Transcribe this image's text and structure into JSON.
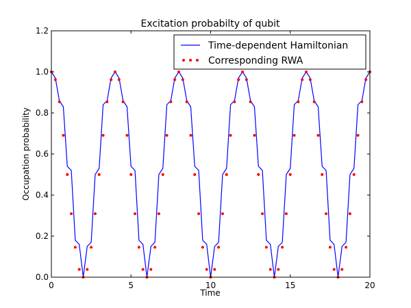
{
  "chart_data": {
    "type": "line",
    "title": "Excitation probabilty of qubit",
    "xlabel": "Time",
    "ylabel": "Occupation probability",
    "xlim": [
      0,
      20
    ],
    "ylim": [
      0,
      1.2
    ],
    "x_ticks": [
      "0",
      "5",
      "10",
      "15",
      "20"
    ],
    "y_ticks": [
      "0.0",
      "0.2",
      "0.4",
      "0.6",
      "0.8",
      "1.0",
      "1.2"
    ],
    "grid": false,
    "legend_position": "top-right",
    "series": [
      {
        "name": "Time-dependent Hamiltonian",
        "style": "solid-line",
        "color": "#0000ff",
        "x": [
          0.0,
          0.25,
          0.5,
          0.75,
          1.0,
          1.25,
          1.5,
          1.75,
          2.0,
          2.25,
          2.5,
          2.75,
          3.0,
          3.25,
          3.5,
          3.75,
          4.0,
          4.25,
          4.5,
          4.75,
          5.0,
          5.25,
          5.5,
          5.75,
          6.0,
          6.25,
          6.5,
          6.75,
          7.0,
          7.25,
          7.5,
          7.75,
          8.0,
          8.25,
          8.5,
          8.75,
          9.0,
          9.25,
          9.5,
          9.75,
          10.0,
          10.25,
          10.5,
          10.75,
          11.0,
          11.25,
          11.5,
          11.75,
          12.0,
          12.25,
          12.5,
          12.75,
          13.0,
          13.25,
          13.5,
          13.75,
          14.0,
          14.25,
          14.5,
          14.75,
          15.0,
          15.25,
          15.5,
          15.75,
          16.0,
          16.25,
          16.5,
          16.75,
          17.0,
          17.25,
          17.5,
          17.75,
          18.0,
          18.25,
          18.5,
          18.75,
          19.0,
          19.25,
          19.5,
          19.75,
          20.0
        ],
        "y": [
          1.0,
          0.97,
          0.86,
          0.83,
          0.54,
          0.52,
          0.18,
          0.16,
          0.0,
          0.15,
          0.17,
          0.5,
          0.53,
          0.84,
          0.86,
          0.97,
          1.0,
          0.97,
          0.86,
          0.83,
          0.54,
          0.52,
          0.18,
          0.16,
          0.0,
          0.15,
          0.17,
          0.5,
          0.53,
          0.84,
          0.86,
          0.97,
          1.0,
          0.97,
          0.86,
          0.83,
          0.54,
          0.52,
          0.18,
          0.16,
          0.0,
          0.15,
          0.17,
          0.5,
          0.53,
          0.84,
          0.86,
          0.97,
          1.0,
          0.97,
          0.86,
          0.83,
          0.54,
          0.52,
          0.18,
          0.16,
          0.0,
          0.15,
          0.17,
          0.5,
          0.53,
          0.84,
          0.86,
          0.97,
          1.0,
          0.97,
          0.86,
          0.83,
          0.54,
          0.52,
          0.18,
          0.16,
          0.0,
          0.15,
          0.17,
          0.5,
          0.53,
          0.84,
          0.86,
          0.97,
          1.0
        ]
      },
      {
        "name": "Corresponding RWA",
        "style": "dotted-markers",
        "color": "#ff0000",
        "x": [
          0.0,
          0.25,
          0.5,
          0.75,
          1.0,
          1.25,
          1.5,
          1.75,
          2.0,
          2.25,
          2.5,
          2.75,
          3.0,
          3.25,
          3.5,
          3.75,
          4.0,
          4.25,
          4.5,
          4.75,
          5.0,
          5.25,
          5.5,
          5.75,
          6.0,
          6.25,
          6.5,
          6.75,
          7.0,
          7.25,
          7.5,
          7.75,
          8.0,
          8.25,
          8.5,
          8.75,
          9.0,
          9.25,
          9.5,
          9.75,
          10.0,
          10.25,
          10.5,
          10.75,
          11.0,
          11.25,
          11.5,
          11.75,
          12.0,
          12.25,
          12.5,
          12.75,
          13.0,
          13.25,
          13.5,
          13.75,
          14.0,
          14.25,
          14.5,
          14.75,
          15.0,
          15.25,
          15.5,
          15.75,
          16.0,
          16.25,
          16.5,
          16.75,
          17.0,
          17.25,
          17.5,
          17.75,
          18.0,
          18.25,
          18.5,
          18.75,
          19.0,
          19.25,
          19.5,
          19.75,
          20.0
        ],
        "y": [
          1.0,
          0.962,
          0.854,
          0.691,
          0.5,
          0.309,
          0.146,
          0.038,
          0.0,
          0.038,
          0.146,
          0.309,
          0.5,
          0.691,
          0.854,
          0.962,
          1.0,
          0.962,
          0.854,
          0.691,
          0.5,
          0.309,
          0.146,
          0.038,
          0.0,
          0.038,
          0.146,
          0.309,
          0.5,
          0.691,
          0.854,
          0.962,
          1.0,
          0.962,
          0.854,
          0.691,
          0.5,
          0.309,
          0.146,
          0.038,
          0.0,
          0.038,
          0.146,
          0.309,
          0.5,
          0.691,
          0.854,
          0.962,
          1.0,
          0.962,
          0.854,
          0.691,
          0.5,
          0.309,
          0.146,
          0.038,
          0.0,
          0.038,
          0.146,
          0.309,
          0.5,
          0.691,
          0.854,
          0.962,
          1.0,
          0.962,
          0.854,
          0.691,
          0.5,
          0.309,
          0.146,
          0.038,
          0.0,
          0.038,
          0.146,
          0.309,
          0.5,
          0.691,
          0.854,
          0.962,
          1.0
        ]
      }
    ]
  }
}
